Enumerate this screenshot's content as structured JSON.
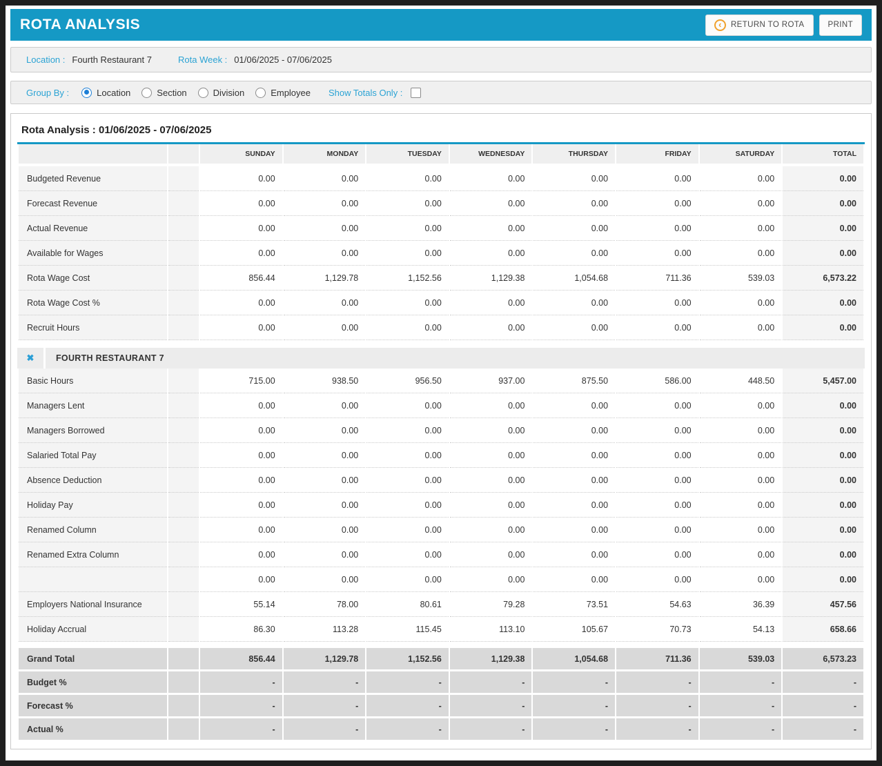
{
  "header": {
    "title": "ROTA ANALYSIS",
    "return_button": "RETURN TO ROTA",
    "print_button": "PRINT"
  },
  "info": {
    "location_label": "Location :",
    "location_value": "Fourth Restaurant 7",
    "rota_week_label": "Rota Week :",
    "rota_week_value": "01/06/2025 - 07/06/2025"
  },
  "filters": {
    "group_by_label": "Group By :",
    "options": [
      {
        "label": "Location",
        "selected": true
      },
      {
        "label": "Section",
        "selected": false
      },
      {
        "label": "Division",
        "selected": false
      },
      {
        "label": "Employee",
        "selected": false
      }
    ],
    "show_totals_label": "Show Totals Only :",
    "show_totals_checked": false
  },
  "table": {
    "title": "Rota Analysis : 01/06/2025 - 07/06/2025",
    "columns": [
      "SUNDAY",
      "MONDAY",
      "TUESDAY",
      "WEDNESDAY",
      "THURSDAY",
      "FRIDAY",
      "SATURDAY"
    ],
    "total_column": "TOTAL",
    "summary_rows": [
      {
        "label": "Budgeted Revenue",
        "values": [
          "0.00",
          "0.00",
          "0.00",
          "0.00",
          "0.00",
          "0.00",
          "0.00"
        ],
        "total": "0.00"
      },
      {
        "label": "Forecast Revenue",
        "values": [
          "0.00",
          "0.00",
          "0.00",
          "0.00",
          "0.00",
          "0.00",
          "0.00"
        ],
        "total": "0.00"
      },
      {
        "label": "Actual Revenue",
        "values": [
          "0.00",
          "0.00",
          "0.00",
          "0.00",
          "0.00",
          "0.00",
          "0.00"
        ],
        "total": "0.00"
      },
      {
        "label": "Available for Wages",
        "values": [
          "0.00",
          "0.00",
          "0.00",
          "0.00",
          "0.00",
          "0.00",
          "0.00"
        ],
        "total": "0.00"
      },
      {
        "label": "Rota Wage Cost",
        "values": [
          "856.44",
          "1,129.78",
          "1,152.56",
          "1,129.38",
          "1,054.68",
          "711.36",
          "539.03"
        ],
        "total": "6,573.22"
      },
      {
        "label": "Rota Wage Cost %",
        "values": [
          "0.00",
          "0.00",
          "0.00",
          "0.00",
          "0.00",
          "0.00",
          "0.00"
        ],
        "total": "0.00"
      },
      {
        "label": "Recruit Hours",
        "values": [
          "0.00",
          "0.00",
          "0.00",
          "0.00",
          "0.00",
          "0.00",
          "0.00"
        ],
        "total": "0.00"
      }
    ],
    "section": {
      "close_icon": "✖",
      "name": "FOURTH RESTAURANT 7",
      "rows": [
        {
          "label": "Basic Hours",
          "values": [
            "715.00",
            "938.50",
            "956.50",
            "937.00",
            "875.50",
            "586.00",
            "448.50"
          ],
          "total": "5,457.00"
        },
        {
          "label": "Managers Lent",
          "values": [
            "0.00",
            "0.00",
            "0.00",
            "0.00",
            "0.00",
            "0.00",
            "0.00"
          ],
          "total": "0.00"
        },
        {
          "label": "Managers Borrowed",
          "values": [
            "0.00",
            "0.00",
            "0.00",
            "0.00",
            "0.00",
            "0.00",
            "0.00"
          ],
          "total": "0.00"
        },
        {
          "label": "Salaried Total Pay",
          "values": [
            "0.00",
            "0.00",
            "0.00",
            "0.00",
            "0.00",
            "0.00",
            "0.00"
          ],
          "total": "0.00"
        },
        {
          "label": "Absence Deduction",
          "values": [
            "0.00",
            "0.00",
            "0.00",
            "0.00",
            "0.00",
            "0.00",
            "0.00"
          ],
          "total": "0.00"
        },
        {
          "label": "Holiday Pay",
          "values": [
            "0.00",
            "0.00",
            "0.00",
            "0.00",
            "0.00",
            "0.00",
            "0.00"
          ],
          "total": "0.00"
        },
        {
          "label": "Renamed Column",
          "values": [
            "0.00",
            "0.00",
            "0.00",
            "0.00",
            "0.00",
            "0.00",
            "0.00"
          ],
          "total": "0.00"
        },
        {
          "label": "Renamed Extra Column",
          "values": [
            "0.00",
            "0.00",
            "0.00",
            "0.00",
            "0.00",
            "0.00",
            "0.00"
          ],
          "total": "0.00"
        },
        {
          "label": "",
          "values": [
            "0.00",
            "0.00",
            "0.00",
            "0.00",
            "0.00",
            "0.00",
            "0.00"
          ],
          "total": "0.00"
        },
        {
          "label": "Employers National Insurance",
          "values": [
            "55.14",
            "78.00",
            "80.61",
            "79.28",
            "73.51",
            "54.63",
            "36.39"
          ],
          "total": "457.56"
        },
        {
          "label": "Holiday Accrual",
          "values": [
            "86.30",
            "113.28",
            "115.45",
            "113.10",
            "105.67",
            "70.73",
            "54.13"
          ],
          "total": "658.66"
        }
      ]
    },
    "grand_rows": [
      {
        "label": "Grand Total",
        "values": [
          "856.44",
          "1,129.78",
          "1,152.56",
          "1,129.38",
          "1,054.68",
          "711.36",
          "539.03"
        ],
        "total": "6,573.23"
      },
      {
        "label": "Budget %",
        "values": [
          "-",
          "-",
          "-",
          "-",
          "-",
          "-",
          "-"
        ],
        "total": "-"
      },
      {
        "label": "Forecast %",
        "values": [
          "-",
          "-",
          "-",
          "-",
          "-",
          "-",
          "-"
        ],
        "total": "-"
      },
      {
        "label": "Actual %",
        "values": [
          "-",
          "-",
          "-",
          "-",
          "-",
          "-",
          "-"
        ],
        "total": "-"
      }
    ]
  },
  "colors": {
    "accent_teal": "#1599c5",
    "label_blue": "#2ba3d4",
    "radio_blue": "#1d7fd6",
    "icon_orange": "#f0a12c",
    "close_blue": "#2b9fd6",
    "cell_grey": "#f4f4f4",
    "grand_grey": "#d9d9d9"
  }
}
